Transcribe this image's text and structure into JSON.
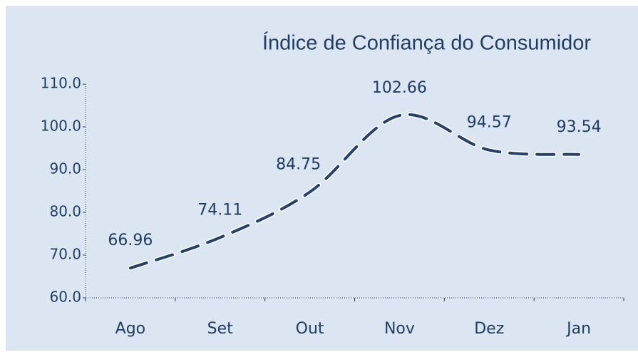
{
  "chart_data": {
    "type": "line",
    "title": "Índice de Confiança do Consumidor",
    "categories": [
      "Ago",
      "Set",
      "Out",
      "Nov",
      "Dez",
      "Jan"
    ],
    "series": [
      {
        "name": "Índice de Confiança do Consumidor",
        "color": "#24406e",
        "values": [
          66.96,
          74.11,
          84.75,
          102.66,
          94.57,
          93.54
        ]
      }
    ],
    "ylim": [
      60,
      110
    ],
    "yticks": [
      {
        "value": 60,
        "label": "60.0"
      },
      {
        "value": 70,
        "label": "70.0"
      },
      {
        "value": 80,
        "label": "80.0"
      },
      {
        "value": 90,
        "label": "90.0"
      },
      {
        "value": 100,
        "label": "100.0"
      },
      {
        "value": 110,
        "label": "110.0"
      }
    ],
    "grid": false
  }
}
